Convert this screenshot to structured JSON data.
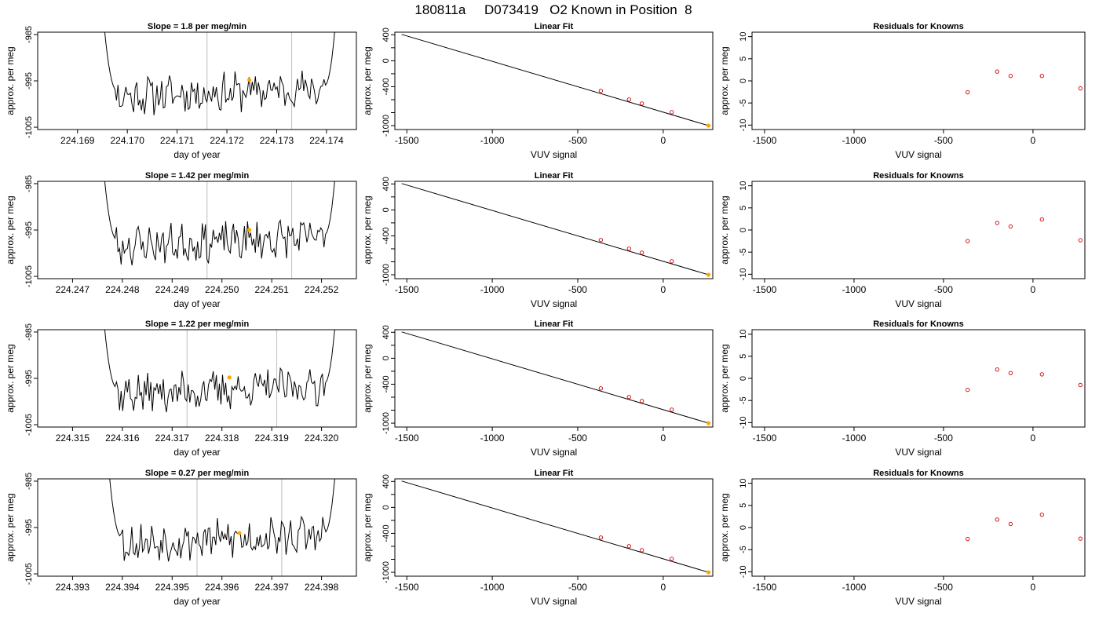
{
  "page_title": "180811a     D073419   O2 Known in Position  8",
  "colors": {
    "trace": "#000000",
    "vline": "#c8c8c8",
    "highlight": "#ffa500",
    "residual": "#cc0000",
    "axis": "#000000"
  },
  "chart_data": [
    {
      "type": "line",
      "row": 0,
      "col": 0,
      "title": "Slope =  1.8  per meg/min",
      "xlabel": "day of year",
      "ylabel": "approx. per meg",
      "xlim": [
        224.1682,
        224.1746
      ],
      "ylim": [
        -1005.5,
        -984.5
      ],
      "x_ticks": [
        "224.169",
        "224.170",
        "224.171",
        "224.172",
        "224.173",
        "224.174"
      ],
      "x_tick_values": [
        224.169,
        224.17,
        224.171,
        224.172,
        224.173,
        224.174
      ],
      "y_ticks": [
        "-985",
        "-995",
        "-1005"
      ],
      "y_tick_values": [
        -985,
        -995,
        -1005
      ],
      "vlines": [
        224.1716,
        224.1733
      ],
      "x_start": 224.1695,
      "x_end": 224.1742,
      "seed": 11,
      "highlight": {
        "x": 224.17245,
        "y": -994.8
      }
    },
    {
      "type": "line",
      "row": 0,
      "col": 1,
      "title": "Linear Fit",
      "xlabel": "VUV signal",
      "ylabel": "approx. per meg",
      "xlim": [
        -1570,
        290
      ],
      "ylim": [
        -1060,
        440
      ],
      "x_ticks": [
        "-1500",
        "-1000",
        "-500",
        "0"
      ],
      "x_tick_values": [
        -1500,
        -1000,
        -500,
        0
      ],
      "y_ticks": [
        "400",
        "0",
        "-400",
        "-1000"
      ],
      "y_tick_values": [
        400,
        0,
        -400,
        -1000
      ],
      "fit_line": {
        "x": [
          -1530,
          265
        ],
        "y": [
          406,
          -1000
        ]
      },
      "points": {
        "x": [
          -365,
          -200,
          -125,
          50
        ],
        "y": [
          -464,
          -598,
          -660,
          -793
        ]
      },
      "highlight": {
        "x": 265,
        "y": -1000
      }
    },
    {
      "type": "scatter",
      "row": 0,
      "col": 2,
      "title": "Residuals for Knowns",
      "xlabel": "VUV signal",
      "ylabel": "approx. per meg",
      "xlim": [
        -1570,
        290
      ],
      "ylim": [
        -11,
        11
      ],
      "x_ticks": [
        "-1500",
        "-1000",
        "-500",
        "0"
      ],
      "x_tick_values": [
        -1500,
        -1000,
        -500,
        0
      ],
      "y_ticks": [
        "10",
        "5",
        "0",
        "-5",
        "-10"
      ],
      "y_tick_values": [
        10,
        5,
        0,
        -5,
        -10
      ],
      "points": {
        "x": [
          -365,
          -200,
          -125,
          50,
          265
        ],
        "y": [
          -2.6,
          2.1,
          1.1,
          1.1,
          -1.7
        ]
      }
    },
    {
      "type": "line",
      "row": 1,
      "col": 0,
      "title": "Slope =  1.42  per meg/min",
      "xlabel": "day of year",
      "ylabel": "approx. per meg",
      "xlim": [
        224.2463,
        224.2527
      ],
      "ylim": [
        -1005.5,
        -984.5
      ],
      "x_ticks": [
        "224.247",
        "224.248",
        "224.249",
        "224.250",
        "224.251",
        "224.252"
      ],
      "x_tick_values": [
        224.247,
        224.248,
        224.249,
        224.25,
        224.251,
        224.252
      ],
      "y_ticks": [
        "-985",
        "-995",
        "-1005"
      ],
      "y_tick_values": [
        -985,
        -995,
        -1005
      ],
      "vlines": [
        224.2497,
        224.2514
      ],
      "x_start": 224.2476,
      "x_end": 224.2523,
      "seed": 23,
      "highlight": {
        "x": 224.25055,
        "y": -995.0
      }
    },
    {
      "type": "line",
      "row": 1,
      "col": 1,
      "title": "Linear Fit",
      "xlabel": "VUV signal",
      "ylabel": "approx. per meg",
      "xlim": [
        -1570,
        290
      ],
      "ylim": [
        -1060,
        440
      ],
      "x_ticks": [
        "-1500",
        "-1000",
        "-500",
        "0"
      ],
      "x_tick_values": [
        -1500,
        -1000,
        -500,
        0
      ],
      "y_ticks": [
        "400",
        "0",
        "-400",
        "-1000"
      ],
      "y_tick_values": [
        400,
        0,
        -400,
        -1000
      ],
      "fit_line": {
        "x": [
          -1530,
          265
        ],
        "y": [
          406,
          -1000
        ]
      },
      "points": {
        "x": [
          -365,
          -200,
          -125,
          50
        ],
        "y": [
          -464,
          -598,
          -660,
          -793
        ]
      },
      "highlight": {
        "x": 265,
        "y": -1000
      }
    },
    {
      "type": "scatter",
      "row": 1,
      "col": 2,
      "title": "Residuals for Knowns",
      "xlabel": "VUV signal",
      "ylabel": "approx. per meg",
      "xlim": [
        -1570,
        290
      ],
      "ylim": [
        -11,
        11
      ],
      "x_ticks": [
        "-1500",
        "-1000",
        "-500",
        "0"
      ],
      "x_tick_values": [
        -1500,
        -1000,
        -500,
        0
      ],
      "y_ticks": [
        "10",
        "5",
        "0",
        "-5",
        "-10"
      ],
      "y_tick_values": [
        10,
        5,
        0,
        -5,
        -10
      ],
      "points": {
        "x": [
          -365,
          -200,
          -125,
          50,
          265
        ],
        "y": [
          -2.5,
          1.6,
          0.8,
          2.4,
          -2.3
        ]
      }
    },
    {
      "type": "line",
      "row": 2,
      "col": 0,
      "title": "Slope =  1.22  per meg/min",
      "xlabel": "day of year",
      "ylabel": "approx. per meg",
      "xlim": [
        224.3143,
        224.3207
      ],
      "ylim": [
        -1005.5,
        -984.5
      ],
      "x_ticks": [
        "224.315",
        "224.316",
        "224.317",
        "224.318",
        "224.319",
        "224.320"
      ],
      "x_tick_values": [
        224.315,
        224.316,
        224.317,
        224.318,
        224.319,
        224.32
      ],
      "y_ticks": [
        "-985",
        "-995",
        "-1005"
      ],
      "y_tick_values": [
        -985,
        -995,
        -1005
      ],
      "vlines": [
        224.3173,
        224.3191
      ],
      "x_start": 224.3156,
      "x_end": 224.3203,
      "seed": 37,
      "highlight": {
        "x": 224.31815,
        "y": -994.8
      }
    },
    {
      "type": "line",
      "row": 2,
      "col": 1,
      "title": "Linear Fit",
      "xlabel": "VUV signal",
      "ylabel": "approx. per meg",
      "xlim": [
        -1570,
        290
      ],
      "ylim": [
        -1060,
        440
      ],
      "x_ticks": [
        "-1500",
        "-1000",
        "-500",
        "0"
      ],
      "x_tick_values": [
        -1500,
        -1000,
        -500,
        0
      ],
      "y_ticks": [
        "400",
        "0",
        "-400",
        "-1000"
      ],
      "y_tick_values": [
        400,
        0,
        -400,
        -1000
      ],
      "fit_line": {
        "x": [
          -1530,
          265
        ],
        "y": [
          406,
          -1000
        ]
      },
      "points": {
        "x": [
          -365,
          -200,
          -125,
          50
        ],
        "y": [
          -464,
          -598,
          -660,
          -793
        ]
      },
      "highlight": {
        "x": 265,
        "y": -1000
      }
    },
    {
      "type": "scatter",
      "row": 2,
      "col": 2,
      "title": "Residuals for Knowns",
      "xlabel": "VUV signal",
      "ylabel": "approx. per meg",
      "xlim": [
        -1570,
        290
      ],
      "ylim": [
        -11,
        11
      ],
      "x_ticks": [
        "-1500",
        "-1000",
        "-500",
        "0"
      ],
      "x_tick_values": [
        -1500,
        -1000,
        -500,
        0
      ],
      "y_ticks": [
        "10",
        "5",
        "0",
        "-5",
        "-10"
      ],
      "y_tick_values": [
        10,
        5,
        0,
        -5,
        -10
      ],
      "points": {
        "x": [
          -365,
          -200,
          -125,
          50,
          265
        ],
        "y": [
          -2.6,
          2.0,
          1.2,
          0.9,
          -1.5
        ]
      }
    },
    {
      "type": "line",
      "row": 3,
      "col": 0,
      "title": "Slope =  0.27  per meg/min",
      "xlabel": "day of year",
      "ylabel": "approx. per meg",
      "xlim": [
        224.3923,
        224.3987
      ],
      "ylim": [
        -1005.5,
        -984.5
      ],
      "x_ticks": [
        "224.393",
        "224.394",
        "224.395",
        "224.396",
        "224.397",
        "224.398"
      ],
      "x_tick_values": [
        224.393,
        224.394,
        224.395,
        224.396,
        224.397,
        224.398
      ],
      "y_ticks": [
        "-985",
        "-995",
        "-1005"
      ],
      "y_tick_values": [
        -985,
        -995,
        -1005
      ],
      "vlines": [
        224.3955,
        224.3972
      ],
      "x_start": 224.3937,
      "x_end": 224.3983,
      "seed": 53,
      "highlight": {
        "x": 224.39635,
        "y": -996.2
      }
    },
    {
      "type": "line",
      "row": 3,
      "col": 1,
      "title": "Linear Fit",
      "xlabel": "VUV signal",
      "ylabel": "approx. per meg",
      "xlim": [
        -1570,
        290
      ],
      "ylim": [
        -1060,
        440
      ],
      "x_ticks": [
        "-1500",
        "-1000",
        "-500",
        "0"
      ],
      "x_tick_values": [
        -1500,
        -1000,
        -500,
        0
      ],
      "y_ticks": [
        "400",
        "0",
        "-400",
        "-1000"
      ],
      "y_tick_values": [
        400,
        0,
        -400,
        -1000
      ],
      "fit_line": {
        "x": [
          -1530,
          265
        ],
        "y": [
          406,
          -1000
        ]
      },
      "points": {
        "x": [
          -365,
          -200,
          -125,
          50
        ],
        "y": [
          -464,
          -598,
          -660,
          -793
        ]
      },
      "highlight": {
        "x": 265,
        "y": -1000
      }
    },
    {
      "type": "scatter",
      "row": 3,
      "col": 2,
      "title": "Residuals for Knowns",
      "xlabel": "VUV signal",
      "ylabel": "approx. per meg",
      "xlim": [
        -1570,
        290
      ],
      "ylim": [
        -11,
        11
      ],
      "x_ticks": [
        "-1500",
        "-1000",
        "-500",
        "0"
      ],
      "x_tick_values": [
        -1500,
        -1000,
        -500,
        0
      ],
      "y_ticks": [
        "10",
        "5",
        "0",
        "-5",
        "-10"
      ],
      "y_tick_values": [
        10,
        5,
        0,
        -5,
        -10
      ],
      "points": {
        "x": [
          -365,
          -200,
          -125,
          50,
          265
        ],
        "y": [
          -2.6,
          1.8,
          0.8,
          2.9,
          -2.5
        ]
      }
    }
  ]
}
